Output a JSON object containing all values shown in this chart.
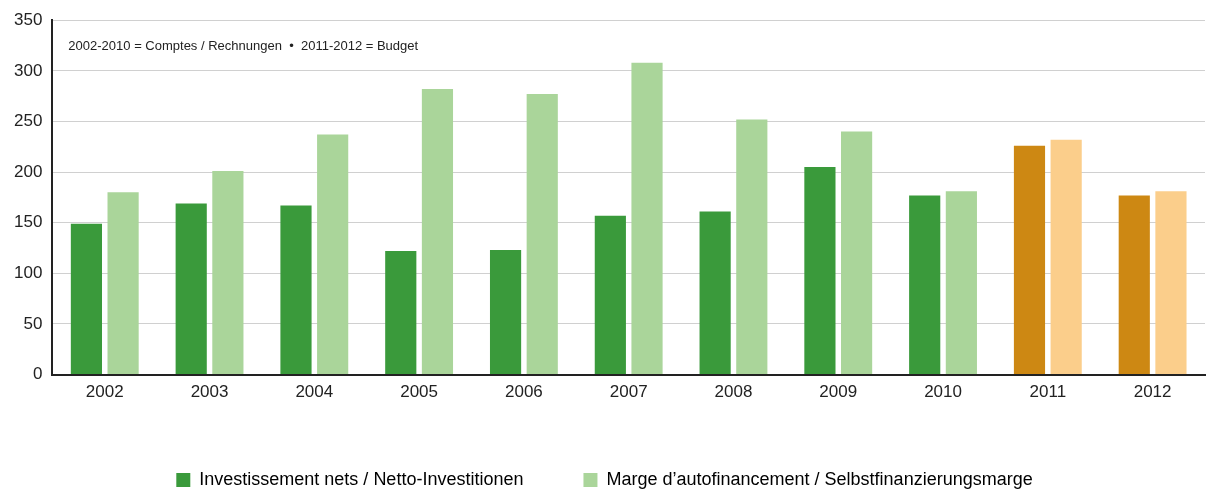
{
  "chart_data": {
    "type": "bar",
    "categories": [
      "2002",
      "2003",
      "2004",
      "2005",
      "2006",
      "2007",
      "2008",
      "2009",
      "2010",
      "2011",
      "2012"
    ],
    "series": [
      {
        "name": "Investissement nets / Netto-Investitionen",
        "color": "#3a9a3b",
        "colors": [
          "#3a9a3b",
          "#3a9a3b",
          "#3a9a3b",
          "#3a9a3b",
          "#3a9a3b",
          "#3a9a3b",
          "#3a9a3b",
          "#3a9a3b",
          "#3a9a3b",
          "#cd8813",
          "#cd8813"
        ],
        "values": [
          149,
          169,
          167,
          122,
          123,
          157,
          161,
          205,
          177,
          226,
          177
        ]
      },
      {
        "name": "Marge d’autofinancement / Selbstfinanzierungsmarge",
        "color": "#aad59a",
        "colors": [
          "#aad59a",
          "#aad59a",
          "#aad59a",
          "#aad59a",
          "#aad59a",
          "#aad59a",
          "#aad59a",
          "#aad59a",
          "#aad59a",
          "#fbce8b",
          "#fbce8b"
        ],
        "values": [
          180,
          201,
          237,
          282,
          277,
          308,
          252,
          240,
          181,
          232,
          181
        ]
      }
    ],
    "ylim": [
      0,
      350
    ],
    "yticks": [
      0,
      50,
      100,
      150,
      200,
      250,
      300,
      350
    ],
    "grid": "y",
    "legend": "bottom",
    "annotations": [
      "2002-2010 = Comptes / Rechnungen  •  2011-2012 = Budget"
    ]
  }
}
